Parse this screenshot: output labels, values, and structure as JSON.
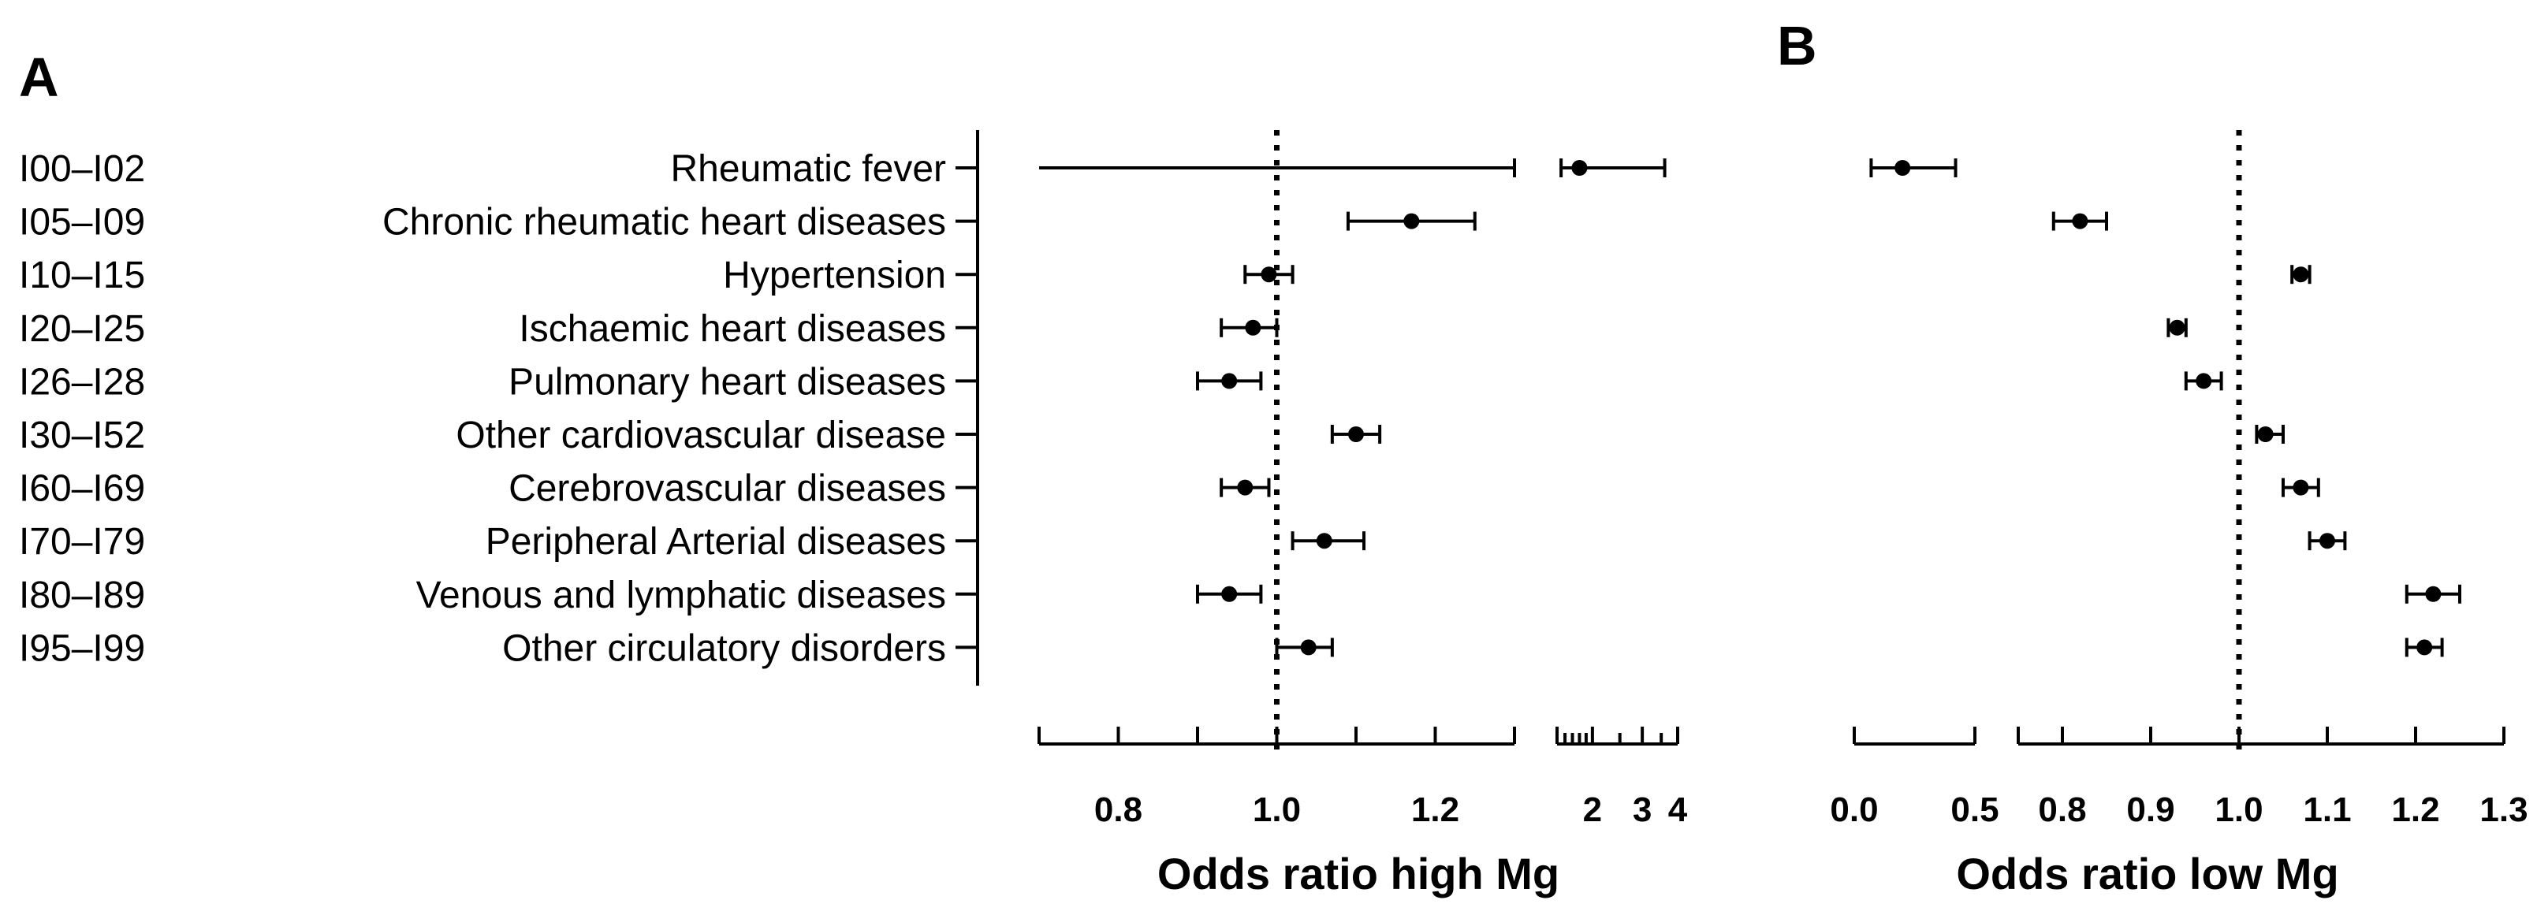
{
  "chart_data": [
    {
      "panel": "A",
      "type": "forest",
      "xlabel": "Odds ratio high Mg",
      "reference_line": 1.0,
      "axis_segments": [
        {
          "scale": "linear",
          "range": [
            0.7,
            1.3
          ],
          "ticks": [
            0.8,
            1.0,
            1.2
          ],
          "minor_ticks": [
            0.7,
            0.9,
            1.1,
            1.3
          ]
        },
        {
          "scale": "log",
          "range": [
            1.5,
            4.0
          ],
          "ticks": [
            2,
            3,
            4
          ],
          "minor_ticks": [
            1.5,
            1.6,
            1.7,
            1.8,
            1.9,
            2.5,
            3.5
          ]
        }
      ],
      "rows": [
        {
          "code": "I00–I02",
          "name": "Rheumatic fever",
          "or": 1.8,
          "lo": 0.7,
          "hi": 3.6
        },
        {
          "code": "I05–I09",
          "name": "Chronic rheumatic heart diseases",
          "or": 1.17,
          "lo": 1.09,
          "hi": 1.25
        },
        {
          "code": "I10–I15",
          "name": "Hypertension",
          "or": 0.99,
          "lo": 0.96,
          "hi": 1.02
        },
        {
          "code": "I20–I25",
          "name": "Ischaemic heart diseases",
          "or": 0.97,
          "lo": 0.93,
          "hi": 1.0
        },
        {
          "code": "I26–I28",
          "name": "Pulmonary heart diseases",
          "or": 0.94,
          "lo": 0.9,
          "hi": 0.98
        },
        {
          "code": "I30–I52",
          "name": "Other cardiovascular disease",
          "or": 1.1,
          "lo": 1.07,
          "hi": 1.13
        },
        {
          "code": "I60–I69",
          "name": "Cerebrovascular diseases",
          "or": 0.96,
          "lo": 0.93,
          "hi": 0.99
        },
        {
          "code": "I70–I79",
          "name": "Peripheral Arterial diseases",
          "or": 1.06,
          "lo": 1.02,
          "hi": 1.11
        },
        {
          "code": "I80–I89",
          "name": "Venous and lymphatic diseases",
          "or": 0.94,
          "lo": 0.9,
          "hi": 0.98
        },
        {
          "code": "I95–I99",
          "name": "Other circulatory disorders",
          "or": 1.04,
          "lo": 1.0,
          "hi": 1.07
        }
      ]
    },
    {
      "panel": "B",
      "type": "forest",
      "xlabel": "Odds ratio low Mg",
      "reference_line": 1.0,
      "axis_segments": [
        {
          "scale": "linear",
          "range": [
            0.0,
            0.5
          ],
          "ticks": [
            0.0,
            0.5
          ],
          "tick_labels": [
            "0.0",
            "0.5"
          ]
        },
        {
          "scale": "linear",
          "range": [
            0.75,
            1.3
          ],
          "ticks": [
            0.8,
            0.9,
            1.0,
            1.1,
            1.2,
            1.3
          ],
          "tick_labels": [
            "0.8",
            "0.9",
            "1.0",
            "1.1",
            "1.2",
            "1.3"
          ]
        }
      ],
      "rows": [
        {
          "code": "I00–I02",
          "or": 0.2,
          "lo": 0.07,
          "hi": 0.42
        },
        {
          "code": "I05–I09",
          "or": 0.82,
          "lo": 0.79,
          "hi": 0.85
        },
        {
          "code": "I10–I15",
          "or": 1.07,
          "lo": 1.06,
          "hi": 1.08
        },
        {
          "code": "I20–I25",
          "or": 0.93,
          "lo": 0.92,
          "hi": 0.94
        },
        {
          "code": "I26–I28",
          "or": 0.96,
          "lo": 0.94,
          "hi": 0.98
        },
        {
          "code": "I30–I52",
          "or": 1.03,
          "lo": 1.02,
          "hi": 1.05
        },
        {
          "code": "I60–I69",
          "or": 1.07,
          "lo": 1.05,
          "hi": 1.09
        },
        {
          "code": "I70–I79",
          "or": 1.1,
          "lo": 1.08,
          "hi": 1.12
        },
        {
          "code": "I80–I89",
          "or": 1.22,
          "lo": 1.19,
          "hi": 1.25
        },
        {
          "code": "I95–I99",
          "or": 1.21,
          "lo": 1.19,
          "hi": 1.23
        }
      ]
    }
  ]
}
